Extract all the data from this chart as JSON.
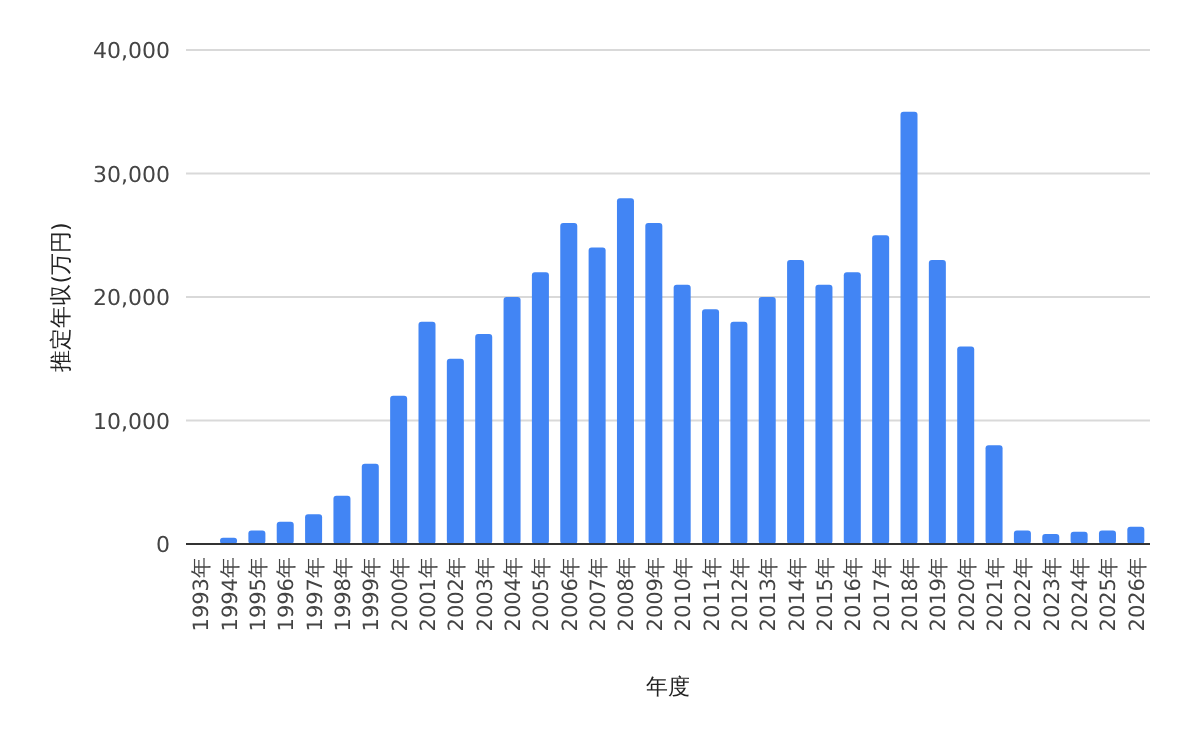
{
  "chart_data": {
    "type": "bar",
    "xlabel": "年度",
    "ylabel": "推定年収(万円)",
    "categories": [
      "1993年",
      "1994年",
      "1995年",
      "1996年",
      "1997年",
      "1998年",
      "1999年",
      "2000年",
      "2001年",
      "2002年",
      "2003年",
      "2004年",
      "2005年",
      "2006年",
      "2007年",
      "2008年",
      "2009年",
      "2010年",
      "2011年",
      "2012年",
      "2013年",
      "2014年",
      "2015年",
      "2016年",
      "2017年",
      "2018年",
      "2019年",
      "2020年",
      "2021年",
      "2022年",
      "2023年",
      "2024年",
      "2025年",
      "2026年"
    ],
    "values": [
      0,
      500,
      1100,
      1800,
      2400,
      3900,
      6500,
      12000,
      18000,
      15000,
      17000,
      20000,
      22000,
      26000,
      24000,
      28000,
      26000,
      21000,
      19000,
      18000,
      20000,
      23000,
      21000,
      22000,
      25000,
      35000,
      23000,
      16000,
      8000,
      1100,
      800,
      1000,
      1100,
      1400
    ],
    "color": "#4285f4",
    "ylim": [
      0,
      40000
    ],
    "yticks": [
      0,
      {
        "value": 10000,
        "label": "10,000"
      },
      {
        "value": 20000,
        "label": "20,000"
      },
      {
        "value": 30000,
        "label": "30,000"
      },
      {
        "value": 40000,
        "label": "40,000"
      }
    ],
    "grid": "y",
    "legend": false
  }
}
